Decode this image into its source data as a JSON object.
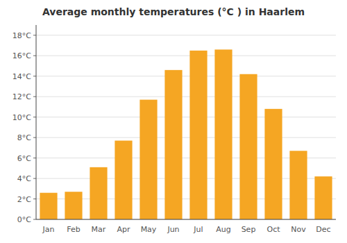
{
  "chart_data": {
    "type": "bar",
    "title": "Average monthly temperatures (°C ) in Haarlem",
    "categories": [
      "Jan",
      "Feb",
      "Mar",
      "Apr",
      "May",
      "Jun",
      "Jul",
      "Aug",
      "Sep",
      "Oct",
      "Nov",
      "Dec"
    ],
    "values": [
      2.6,
      2.7,
      5.1,
      7.7,
      11.7,
      14.6,
      16.5,
      16.6,
      14.2,
      10.8,
      6.7,
      4.2
    ],
    "color": "#F5A623",
    "ylim": [
      0,
      19
    ],
    "yticks": [
      {
        "value": 0,
        "label": "0°C"
      },
      {
        "value": 2,
        "label": "2°C"
      },
      {
        "value": 4,
        "label": "4°C"
      },
      {
        "value": 6,
        "label": "6°C"
      },
      {
        "value": 8,
        "label": "8°C"
      },
      {
        "value": 10,
        "label": "10°C"
      },
      {
        "value": 12,
        "label": "12°C"
      },
      {
        "value": 14,
        "label": "14°C"
      },
      {
        "value": 16,
        "label": "16°C"
      },
      {
        "value": 18,
        "label": "18°C"
      }
    ],
    "grid": true
  }
}
